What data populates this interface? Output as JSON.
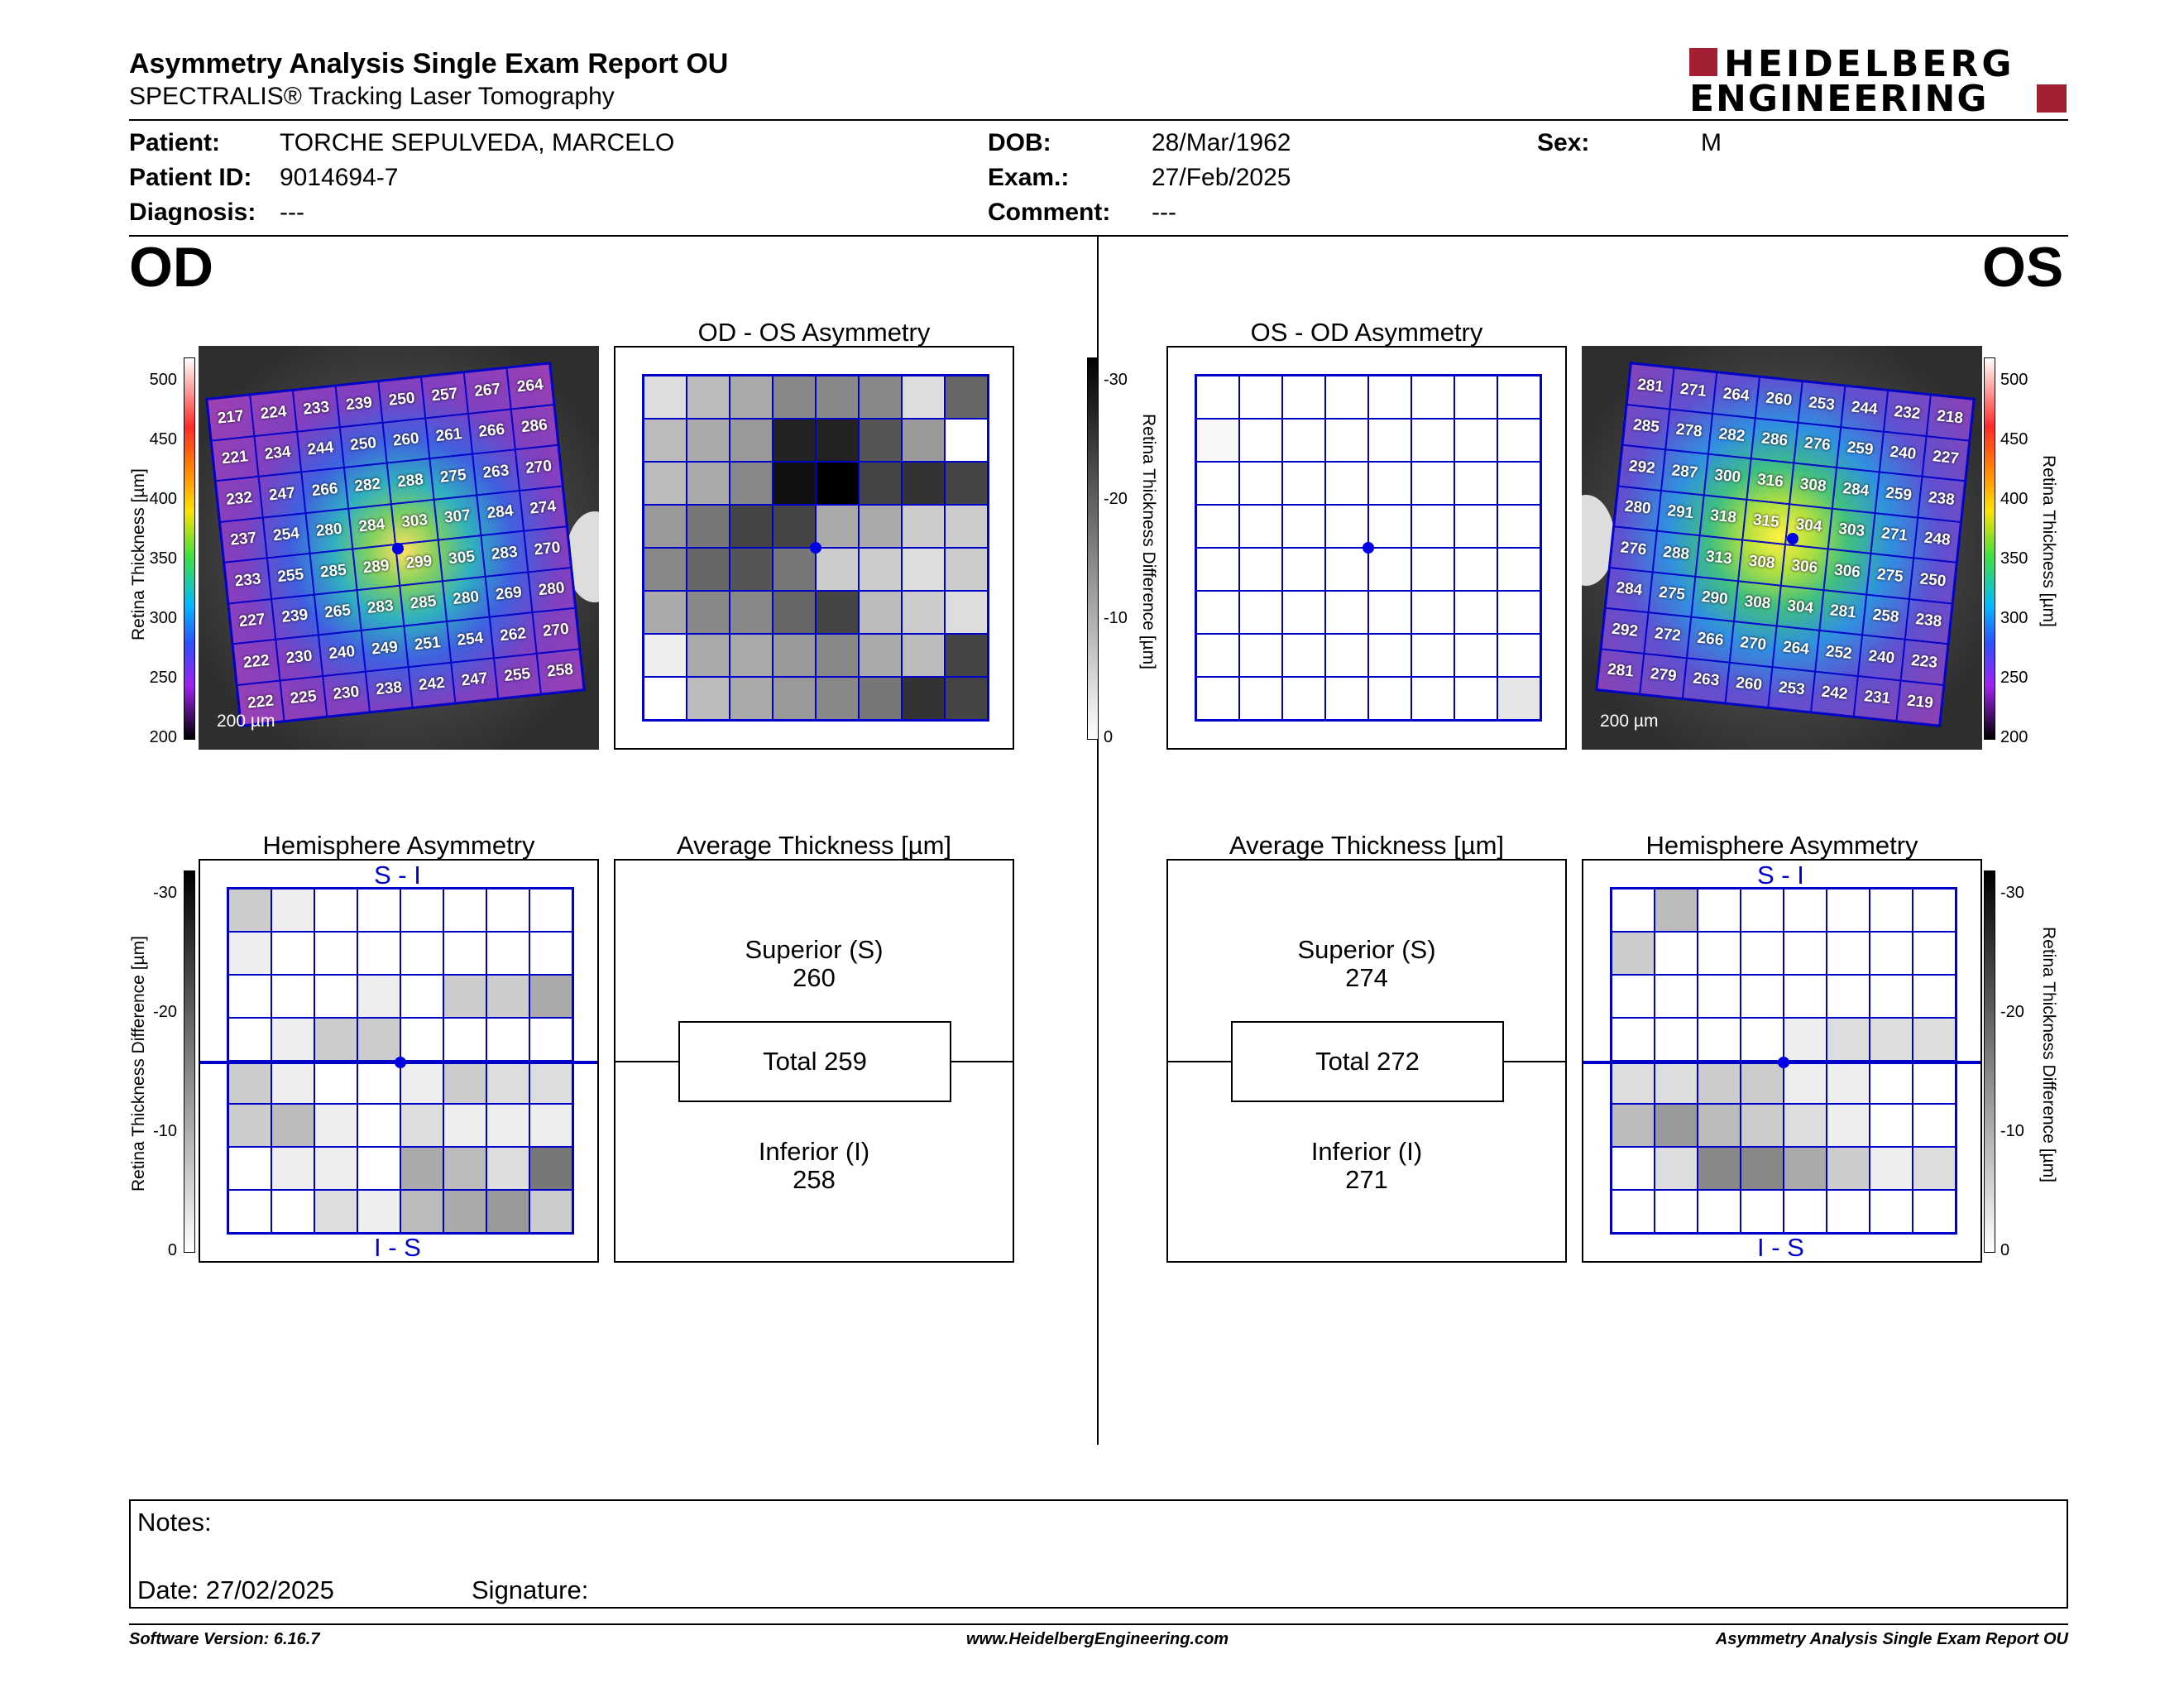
{
  "header": {
    "title": "Asymmetry Analysis Single Exam Report OU",
    "subtitle": "SPECTRALIS® Tracking Laser Tomography",
    "logo_line1": "HEIDELBERG",
    "logo_line2": "ENGINEERING"
  },
  "patient": {
    "patient_label": "Patient:",
    "patient_value": "TORCHE SEPULVEDA, MARCELO",
    "id_label": "Patient ID:",
    "id_value": "9014694-7",
    "diag_label": "Diagnosis:",
    "diag_value": "---",
    "dob_label": "DOB:",
    "dob_value": "28/Mar/1962",
    "exam_label": "Exam.:",
    "exam_value": "27/Feb/2025",
    "comment_label": "Comment:",
    "comment_value": "---",
    "sex_label": "Sex:",
    "sex_value": "M"
  },
  "eyes": {
    "od": "OD",
    "os": "OS"
  },
  "titles": {
    "od_os": "OD - OS Asymmetry",
    "os_od": "OS - OD Asymmetry",
    "hemi": "Hemisphere Asymmetry",
    "avg": "Average Thickness [µm]"
  },
  "axes": {
    "thickness": "Retina  Thickness [µm]",
    "thickness_os": "Retina  Thickness [µm]",
    "diff": "Retina Thickness Difference [µm]",
    "thick_ticks": [
      "500",
      "450",
      "400",
      "350",
      "300",
      "250",
      "200"
    ],
    "diff_ticks": [
      "-30",
      "-20",
      "-10",
      "0"
    ],
    "scale": "200 µm",
    "si": "S - I",
    "is": "I - S"
  },
  "od_avg": {
    "sup_label": "Superior (S)",
    "sup": "260",
    "total": "Total 259",
    "inf_label": "Inferior (I)",
    "inf": "258"
  },
  "os_avg": {
    "sup_label": "Superior (S)",
    "sup": "274",
    "total": "Total 272",
    "inf_label": "Inferior (I)",
    "inf": "271"
  },
  "od_thickness": [
    [
      217,
      224,
      233,
      239,
      250,
      257,
      267,
      264
    ],
    [
      221,
      234,
      244,
      250,
      260,
      261,
      266,
      286
    ],
    [
      232,
      247,
      266,
      282,
      288,
      275,
      263,
      270
    ],
    [
      237,
      254,
      280,
      284,
      303,
      307,
      284,
      274
    ],
    [
      233,
      255,
      285,
      289,
      299,
      305,
      283,
      270
    ],
    [
      227,
      239,
      265,
      283,
      285,
      280,
      269,
      280
    ],
    [
      222,
      230,
      240,
      249,
      251,
      254,
      262,
      270
    ],
    [
      222,
      225,
      230,
      238,
      242,
      247,
      255,
      258
    ]
  ],
  "os_thickness": [
    [
      281,
      271,
      264,
      260,
      253,
      244,
      232,
      218
    ],
    [
      285,
      278,
      282,
      286,
      276,
      259,
      240,
      227
    ],
    [
      292,
      287,
      300,
      316,
      308,
      284,
      259,
      238
    ],
    [
      280,
      291,
      318,
      315,
      304,
      303,
      271,
      248
    ],
    [
      276,
      288,
      313,
      308,
      306,
      306,
      275,
      250
    ],
    [
      284,
      275,
      290,
      308,
      304,
      281,
      258,
      238
    ],
    [
      292,
      272,
      266,
      270,
      264,
      252,
      240,
      223
    ],
    [
      281,
      279,
      263,
      260,
      253,
      242,
      231,
      219
    ]
  ],
  "od_asym": [
    [
      4,
      8,
      10,
      14,
      14,
      14,
      4,
      18
    ],
    [
      8,
      10,
      12,
      26,
      26,
      20,
      12,
      0
    ],
    [
      8,
      10,
      14,
      28,
      30,
      22,
      24,
      22
    ],
    [
      12,
      16,
      22,
      22,
      10,
      10,
      6,
      6
    ],
    [
      14,
      18,
      20,
      16,
      6,
      6,
      4,
      6
    ],
    [
      10,
      14,
      14,
      18,
      22,
      8,
      6,
      4
    ],
    [
      2,
      10,
      10,
      12,
      14,
      10,
      8,
      22
    ],
    [
      0,
      8,
      10,
      12,
      14,
      16,
      24,
      22
    ]
  ],
  "os_asym": [
    [
      0,
      0,
      0,
      0,
      0,
      0,
      0,
      0
    ],
    [
      1,
      0,
      0,
      0,
      0,
      0,
      0,
      0
    ],
    [
      0,
      0,
      0,
      0,
      0,
      0,
      0,
      0
    ],
    [
      0,
      0,
      0,
      0,
      0,
      0,
      0,
      0
    ],
    [
      0,
      0,
      0,
      0,
      0,
      0,
      0,
      0
    ],
    [
      0,
      0,
      0,
      0,
      0,
      0,
      0,
      0
    ],
    [
      0,
      0,
      0,
      0,
      0,
      0,
      0,
      0
    ],
    [
      0,
      0,
      0,
      0,
      0,
      0,
      0,
      3
    ]
  ],
  "od_hemi": [
    [
      6,
      2,
      0,
      0,
      0,
      0,
      0,
      0
    ],
    [
      2,
      0,
      0,
      0,
      0,
      0,
      0,
      0
    ],
    [
      0,
      0,
      0,
      2,
      0,
      6,
      6,
      10
    ],
    [
      0,
      2,
      6,
      6,
      0,
      0,
      0,
      0
    ],
    [
      6,
      2,
      0,
      0,
      2,
      6,
      4,
      4
    ],
    [
      6,
      8,
      2,
      0,
      4,
      2,
      2,
      2
    ],
    [
      0,
      2,
      2,
      0,
      10,
      8,
      4,
      16
    ],
    [
      0,
      0,
      4,
      2,
      8,
      10,
      12,
      6
    ]
  ],
  "os_hemi": [
    [
      0,
      8,
      0,
      0,
      0,
      0,
      0,
      0
    ],
    [
      6,
      0,
      0,
      0,
      0,
      0,
      0,
      0
    ],
    [
      0,
      0,
      0,
      0,
      0,
      0,
      0,
      0
    ],
    [
      0,
      0,
      0,
      0,
      2,
      4,
      4,
      4
    ],
    [
      4,
      4,
      6,
      6,
      2,
      2,
      0,
      0
    ],
    [
      8,
      12,
      8,
      6,
      4,
      2,
      0,
      0
    ],
    [
      0,
      4,
      14,
      14,
      10,
      6,
      2,
      4
    ],
    [
      0,
      0,
      0,
      0,
      0,
      0,
      0,
      0
    ]
  ],
  "notes": {
    "notes_label": "Notes:",
    "date_label": "Date: 27/02/2025",
    "sig_label": "Signature:"
  },
  "footer": {
    "left": "Software Version: 6.16.7",
    "center": "www.HeidelbergEngineering.com",
    "right": "Asymmetry Analysis Single Exam Report OU"
  },
  "colors": {
    "brand": "#a31f34",
    "grid": "#0000c8"
  }
}
